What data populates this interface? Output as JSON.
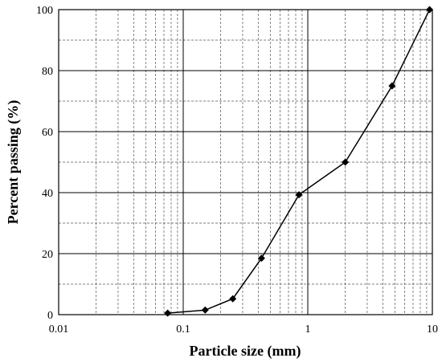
{
  "chart_data": {
    "type": "line",
    "title": "",
    "xlabel": "Particle size (mm)",
    "ylabel": "Percent passing (%)",
    "xscale": "log",
    "xlim": [
      0.01,
      10
    ],
    "ylim": [
      0,
      100
    ],
    "xticks": [
      {
        "value": 0.01,
        "label": "0.01"
      },
      {
        "value": 0.1,
        "label": "0.1"
      },
      {
        "value": 1,
        "label": "1"
      },
      {
        "value": 10,
        "label": "10"
      }
    ],
    "yticks": [
      {
        "value": 0,
        "label": "0"
      },
      {
        "value": 20,
        "label": "20"
      },
      {
        "value": 40,
        "label": "40"
      },
      {
        "value": 60,
        "label": "60"
      },
      {
        "value": 80,
        "label": "80"
      },
      {
        "value": 100,
        "label": "100"
      }
    ],
    "grid": {
      "major": "solid",
      "minor": "dashed"
    },
    "marker": "diamond",
    "color": "#000000",
    "series": [
      {
        "x": [
          0.075,
          0.15,
          0.25,
          0.425,
          0.85,
          2.0,
          4.75,
          9.5
        ],
        "y": [
          0.5,
          1.5,
          5.2,
          18.5,
          39.3,
          50.0,
          75.0,
          100.0
        ]
      }
    ]
  }
}
